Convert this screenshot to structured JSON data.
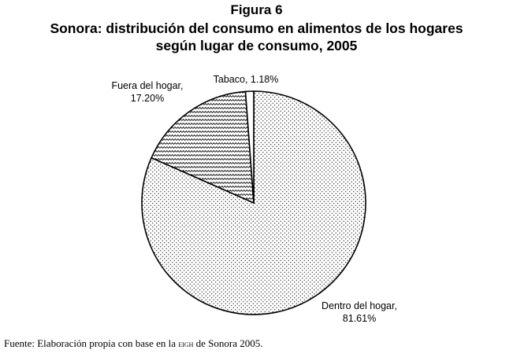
{
  "figure_label": "Figura 6",
  "title_line1": "Sonora: distribución del consumo en alimentos de los hogares",
  "title_line2": "según lugar de consumo, 2005",
  "source": {
    "before": "Fuente: Elaboración propia con base en la ",
    "acronym": "EIGH",
    "after": " de Sonora 2005."
  },
  "chart_data": {
    "type": "pie",
    "title": "Sonora: distribución del consumo en alimentos de los hogares según lugar de consumo, 2005",
    "slices": [
      {
        "name": "Dentro del hogar",
        "value": 81.61,
        "label": "81.61%",
        "pattern": "dots"
      },
      {
        "name": "Fuera del hogar",
        "value": 17.2,
        "label": "17.20%",
        "pattern": "zigzag"
      },
      {
        "name": "Tabaco",
        "value": 1.18,
        "label": "1.18%",
        "pattern": "white"
      }
    ],
    "start_angle_deg": 0,
    "direction": "clockwise"
  }
}
